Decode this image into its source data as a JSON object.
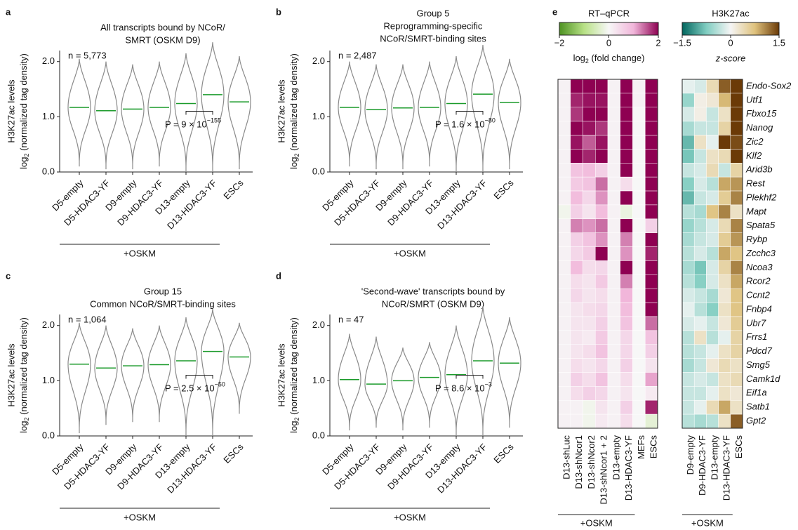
{
  "chart_data": [
    {
      "type": "violin",
      "panel": "a",
      "title": [
        "All transcripts bound by NCoR/",
        "SMRT (OSKM D9)"
      ],
      "n_label": "n = 5,773",
      "ylabel": "H3K27ac levels",
      "ylabel2": {
        "text": "log",
        "sub": "2",
        "rest": " (normalized tag density)"
      },
      "categories": [
        "D5-empty",
        "D5-HDAC3-YF",
        "D9-empty",
        "D9-HDAC3-YF",
        "D13-empty",
        "D13-HDAC3-YF",
        "ESCs"
      ],
      "values": [
        1.17,
        1.11,
        1.14,
        1.17,
        1.24,
        1.4,
        1.27
      ],
      "min": [
        0.1,
        0.05,
        0.05,
        0.1,
        0.0,
        0.0,
        0.05
      ],
      "max": [
        2.05,
        2.0,
        1.95,
        2.0,
        2.15,
        2.35,
        2.1
      ],
      "color": "#1a9a2a",
      "outline": "#8a8a8a",
      "p_label": "P = 9 × 10",
      "p_exponent": "−155",
      "group_label": "+OSKM",
      "ylim": [
        0,
        2.2
      ],
      "yticks": [
        {
          "value": 0,
          "label": "0.0"
        },
        {
          "value": 1,
          "label": "1.0"
        },
        {
          "value": 2,
          "label": "2.0"
        }
      ]
    },
    {
      "type": "violin",
      "panel": "b",
      "title": [
        "Group 5",
        "Reprogramming-specific",
        "NCoR/SMRT-binding sites"
      ],
      "n_label": "n = 2,487",
      "ylabel": "H3K27ac levels",
      "ylabel2": {
        "text": "log",
        "sub": "2",
        "rest": " (normalized tag density)"
      },
      "categories": [
        "D5-empty",
        "D5-HDAC3-YF",
        "D9-empty",
        "D9-HDAC3-YF",
        "D13-empty",
        "D13-HDAC3-YF",
        "ESCs"
      ],
      "values": [
        1.17,
        1.13,
        1.16,
        1.17,
        1.24,
        1.41,
        1.26
      ],
      "min": [
        0.1,
        0.05,
        0.05,
        0.1,
        0.0,
        0.0,
        0.05
      ],
      "max": [
        2.0,
        1.95,
        1.95,
        2.0,
        2.1,
        2.3,
        2.05
      ],
      "color": "#1a9a2a",
      "outline": "#8a8a8a",
      "p_label": "P = 1.6 × 10",
      "p_exponent": "−80",
      "group_label": "+OSKM",
      "ylim": [
        0,
        2.2
      ],
      "yticks": [
        {
          "value": 0,
          "label": "0.0"
        },
        {
          "value": 1,
          "label": "1.0"
        },
        {
          "value": 2,
          "label": "2.0"
        }
      ]
    },
    {
      "type": "violin",
      "panel": "c",
      "title": [
        "Group 15",
        "Common NCoR/SMRT-binding sites"
      ],
      "n_label": "n = 1,064",
      "ylabel": "H3K27ac levels",
      "ylabel2": {
        "text": "log",
        "sub": "2",
        "rest": " (normalized tag density)"
      },
      "categories": [
        "D5-empty",
        "D5-HDAC3-YF",
        "D9-empty",
        "D9-HDAC3-YF",
        "D13-empty",
        "D13-HDAC3-YF",
        "ESCs"
      ],
      "values": [
        1.3,
        1.23,
        1.27,
        1.29,
        1.36,
        1.53,
        1.43
      ],
      "min": [
        0.05,
        0.2,
        0.25,
        0.25,
        0.0,
        0.0,
        0.4
      ],
      "max": [
        2.05,
        2.0,
        1.95,
        2.0,
        2.15,
        2.3,
        2.05
      ],
      "color": "#1a9a2a",
      "outline": "#8a8a8a",
      "p_label": "P = 2.5 × 10",
      "p_exponent": "−50",
      "group_label": "+OSKM",
      "ylim": [
        0,
        2.2
      ],
      "yticks": [
        {
          "value": 0,
          "label": "0.0"
        },
        {
          "value": 1,
          "label": "1.0"
        },
        {
          "value": 2,
          "label": "2.0"
        }
      ]
    },
    {
      "type": "violin",
      "panel": "d",
      "title": [
        "'Second-wave' transcripts bound by",
        "NCoR/SMRT (OSKM D9)"
      ],
      "n_label": "n = 47",
      "ylabel": "H3K27ac levels",
      "ylabel2": {
        "text": "log",
        "sub": "2",
        "rest": " (normalized tag density)"
      },
      "categories": [
        "D5-empty",
        "D5-HDAC3-YF",
        "D9-empty",
        "D9-HDAC3-YF",
        "D13-empty",
        "D13-HDAC3-YF",
        "ESCs"
      ],
      "values": [
        1.02,
        0.94,
        1.0,
        1.06,
        1.11,
        1.36,
        1.32
      ],
      "min": [
        0.1,
        0.15,
        0.1,
        0.15,
        0.0,
        0.0,
        0.15
      ],
      "max": [
        1.85,
        1.8,
        1.6,
        1.7,
        2.0,
        2.35,
        2.15
      ],
      "color": "#1a9a2a",
      "outline": "#8a8a8a",
      "p_label": "P = 8.6 × 10",
      "p_exponent": "−3",
      "group_label": "+OSKM",
      "ylim": [
        0,
        2.2
      ],
      "yticks": [
        {
          "value": 0,
          "label": "0.0"
        },
        {
          "value": 1,
          "label": "1.0"
        },
        {
          "value": 2,
          "label": "2.0"
        }
      ]
    },
    {
      "type": "heatmap",
      "panel": "e",
      "title": "RT–qPCR",
      "colorbar_label": {
        "text": "log",
        "sub": "2",
        "rest": " (fold change)"
      },
      "clim": [
        -2,
        2
      ],
      "cticks": [
        {
          "value": -2,
          "label": "−2"
        },
        0,
        2
      ],
      "colors": [
        "#4d9221",
        "#b8e186",
        "#f7f7f7",
        "#f1b6da",
        "#8e0152"
      ],
      "columns": [
        "D13-shLuc",
        "D13-shNcor1",
        "D13-shNcor2",
        "D13-shNcor1 + 2",
        "D13-empty",
        "D13-HDAC3-YF",
        "MEFs",
        "ESCs"
      ],
      "group_label": "+OSKM",
      "values": [
        [
          0.1,
          2,
          2,
          2,
          0.1,
          2,
          0.1,
          2
        ],
        [
          0.1,
          1.8,
          1.9,
          1.9,
          0.1,
          2,
          0.1,
          2
        ],
        [
          0.1,
          1.7,
          2,
          2,
          0.1,
          2,
          0,
          2
        ],
        [
          0.1,
          2,
          1.9,
          1.7,
          0.1,
          2,
          0,
          2
        ],
        [
          0.1,
          1.9,
          1.5,
          1.9,
          0.1,
          2,
          0,
          2
        ],
        [
          0.1,
          2,
          1.8,
          2,
          0.1,
          2,
          0,
          2
        ],
        [
          0.1,
          0.8,
          0.9,
          0.6,
          0.1,
          2,
          0,
          2
        ],
        [
          0.1,
          0.7,
          0.8,
          1.4,
          0.1,
          0.4,
          0,
          2
        ],
        [
          0.1,
          0.9,
          0.5,
          1.2,
          0.1,
          2,
          0,
          2
        ],
        [
          -0.1,
          0.6,
          0.3,
          0.9,
          0.1,
          -0.2,
          0,
          2
        ],
        [
          0.1,
          1.3,
          1.2,
          1.4,
          0.1,
          2,
          0,
          0.6
        ],
        [
          0.1,
          0.6,
          0.8,
          1.2,
          0.1,
          1.3,
          0,
          2
        ],
        [
          0.1,
          0.5,
          0.7,
          2,
          0.1,
          1.2,
          0,
          1.8
        ],
        [
          0.1,
          0.9,
          0.4,
          0.5,
          0.1,
          2,
          0,
          2
        ],
        [
          0.1,
          0.4,
          0.3,
          0.7,
          0.1,
          1.3,
          0,
          2
        ],
        [
          0.1,
          0.5,
          0.3,
          0.4,
          0.1,
          1,
          0,
          2
        ],
        [
          0.1,
          0.3,
          0.4,
          0.5,
          0.1,
          0.9,
          0,
          2
        ],
        [
          0.1,
          0.3,
          0.3,
          0.6,
          0.1,
          0.8,
          0,
          1.4
        ],
        [
          0.1,
          0.3,
          0.2,
          0.7,
          0.1,
          0.5,
          0,
          0.8
        ],
        [
          0.1,
          0.3,
          0.4,
          0.8,
          0.1,
          0.5,
          0,
          0.6
        ],
        [
          0.1,
          0.4,
          0.3,
          0.5,
          0.1,
          0.6,
          0,
          0.3
        ],
        [
          0.1,
          0.6,
          0.4,
          0.8,
          0.1,
          0.4,
          0,
          1.1
        ],
        [
          0.1,
          0.4,
          0.6,
          0.5,
          0.1,
          0.3,
          0,
          0.2
        ],
        [
          0.1,
          0.1,
          -0.1,
          0.3,
          0.1,
          0.6,
          0,
          1.8
        ],
        [
          0.1,
          0.1,
          -0.1,
          0.2,
          0.1,
          0.4,
          0,
          -0.3
        ]
      ]
    },
    {
      "type": "heatmap",
      "title": "H3K27ac",
      "colorbar_label": "z-score",
      "clim": [
        -1.5,
        1.5
      ],
      "cticks": [
        {
          "value": -1.5,
          "label": "−1.5"
        },
        0,
        1.5
      ],
      "colors": [
        "#01665e",
        "#80cdc1",
        "#f5f5f5",
        "#dfc27d",
        "#6b3a07"
      ],
      "columns": [
        "D9-empty",
        "D9-HDAC3-YF",
        "D13-empty",
        "D13-HDAC3-YF",
        "ESCs"
      ],
      "group_label": "+OSKM",
      "rows": [
        "Endo-Sox2",
        "Utf1",
        "Fbxo15",
        "Nanog",
        "Zic2",
        "Klf2",
        "Arid3b",
        "Rest",
        "Plekhf2",
        "Mapt",
        "Spata5",
        "Rybp",
        "Zcchc3",
        "Ncoa3",
        "Rcor2",
        "Ccnt2",
        "Fnbp4",
        "Ubr7",
        "Frrs1",
        "Pdcd7",
        "Smg5",
        "Camk1d",
        "Eif1a",
        "Satb1",
        "Gpt2"
      ],
      "values": [
        [
          -0.1,
          -0.2,
          0.4,
          1.3,
          1.5
        ],
        [
          -0.6,
          0.1,
          0.2,
          0.8,
          1.5
        ],
        [
          -0.2,
          0.1,
          -0.3,
          0.3,
          1.5
        ],
        [
          -0.5,
          -0.3,
          -0.3,
          0.5,
          1.5
        ],
        [
          -0.9,
          0.3,
          -0.1,
          1.5,
          1.4
        ],
        [
          -0.8,
          -0.3,
          0.3,
          0.4,
          1.5
        ],
        [
          -0.3,
          -0.2,
          0.4,
          -0.3,
          0.5
        ],
        [
          -0.7,
          -0.2,
          -0.4,
          0.9,
          1.0
        ],
        [
          -0.9,
          -0.3,
          -0.2,
          0.6,
          1.1
        ],
        [
          -0.4,
          -0.5,
          0.7,
          1.1,
          0.3
        ],
        [
          -0.6,
          -0.4,
          -0.2,
          0.4,
          1.1
        ],
        [
          -0.5,
          -0.3,
          -0.2,
          0.6,
          1.0
        ],
        [
          -0.4,
          -0.2,
          -0.4,
          0.9,
          0.7
        ],
        [
          -0.5,
          -0.8,
          -0.2,
          0.5,
          1.1
        ],
        [
          -0.4,
          -0.7,
          -0.2,
          0.3,
          0.9
        ],
        [
          -0.2,
          -0.3,
          -0.5,
          0.2,
          0.7
        ],
        [
          -0.1,
          -0.4,
          -0.7,
          0.3,
          0.7
        ],
        [
          -0.2,
          -0.1,
          -0.3,
          0.2,
          0.6
        ],
        [
          -0.4,
          0.3,
          -0.4,
          -0.1,
          0.5
        ],
        [
          -0.4,
          -0.3,
          -0.1,
          0.3,
          0.5
        ],
        [
          -0.5,
          -0.3,
          0.2,
          0.4,
          0.3
        ],
        [
          -0.3,
          -0.2,
          -0.3,
          0.3,
          0.4
        ],
        [
          -0.3,
          -0.3,
          -0.1,
          0.3,
          0.2
        ],
        [
          -0.3,
          -0.1,
          0.4,
          0.9,
          0.3
        ],
        [
          -0.4,
          -0.5,
          -0.4,
          0.3,
          1.3
        ]
      ]
    }
  ]
}
